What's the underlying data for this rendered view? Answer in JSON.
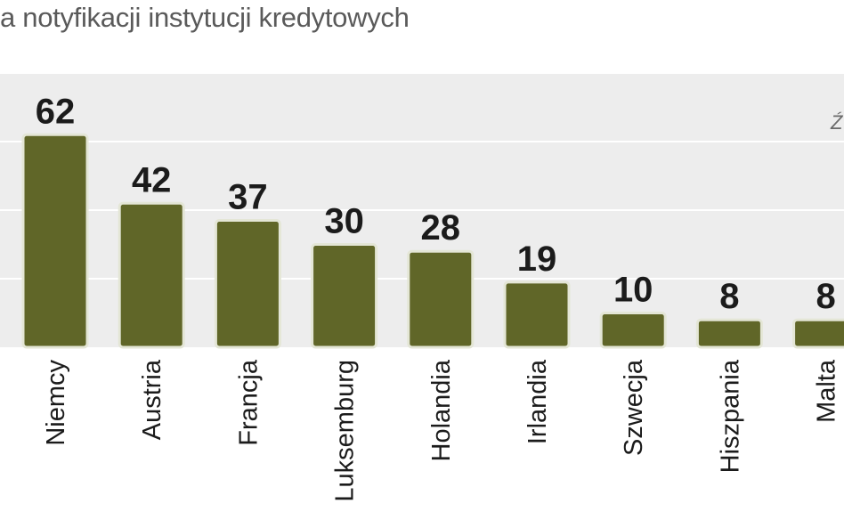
{
  "title_fragment": "a notyfikacji instytucji kredytowych",
  "source_fragment": "Ź",
  "colors": {
    "panel": "#ededed",
    "grid": "#ffffff",
    "bar": "#606628",
    "bar_outline": "#e4e6d6",
    "text": "#1b1b1b"
  },
  "chart_data": {
    "type": "bar",
    "categories": [
      "Niemcy",
      "Austria",
      "Francja",
      "Luksemburg",
      "Holandia",
      "Irlandia",
      "Szwecja",
      "Hiszpania",
      "Malta"
    ],
    "values": [
      62,
      42,
      37,
      30,
      28,
      19,
      10,
      8,
      8
    ],
    "data_labels": [
      "62",
      "42",
      "37",
      "30",
      "28",
      "19",
      "10",
      "8",
      "8"
    ],
    "ylim": [
      0,
      80
    ],
    "grid": true,
    "gridline_values": [
      20,
      40,
      60
    ],
    "legend": "none"
  }
}
